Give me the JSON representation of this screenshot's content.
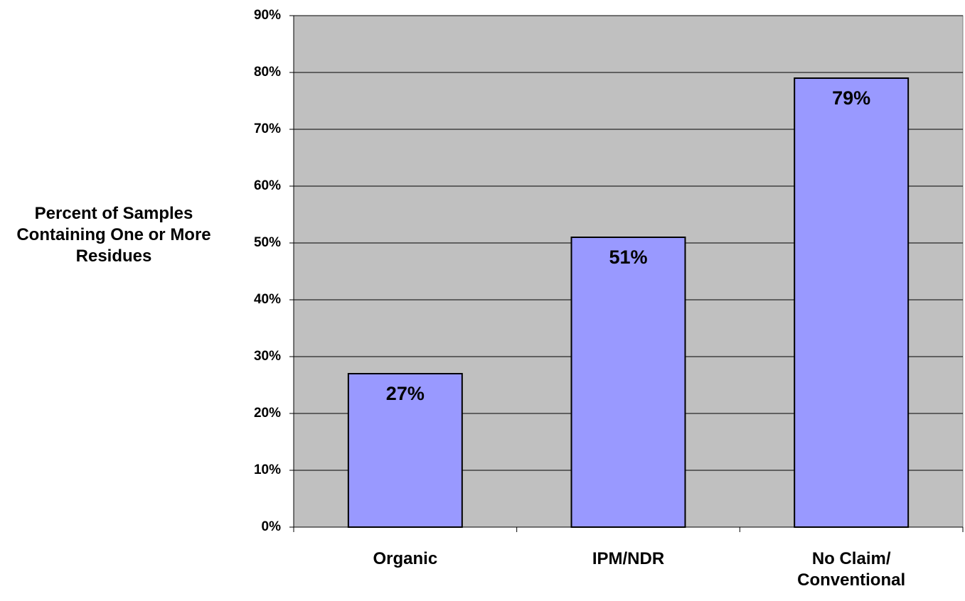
{
  "chart_data": {
    "type": "bar",
    "y_label": "Percent of Samples Containing One or More Residues",
    "categories": [
      "Organic",
      "IPM/NDR",
      "No Claim/ Conventional"
    ],
    "values": [
      27,
      51,
      79
    ],
    "value_labels": [
      "27%",
      "51%",
      "79%"
    ],
    "color": "#9999ff",
    "plot_background": "#c0c0c0",
    "ylim": [
      0,
      90
    ],
    "yticks": [
      {
        "value": 0,
        "label": "0%"
      },
      {
        "value": 10,
        "label": "10%"
      },
      {
        "value": 20,
        "label": "20%"
      },
      {
        "value": 30,
        "label": "30%"
      },
      {
        "value": 40,
        "label": "40%"
      },
      {
        "value": 50,
        "label": "50%"
      },
      {
        "value": 60,
        "label": "60%"
      },
      {
        "value": 70,
        "label": "70%"
      },
      {
        "value": 80,
        "label": "80%"
      },
      {
        "value": 90,
        "label": "90%"
      }
    ],
    "grid": true
  }
}
